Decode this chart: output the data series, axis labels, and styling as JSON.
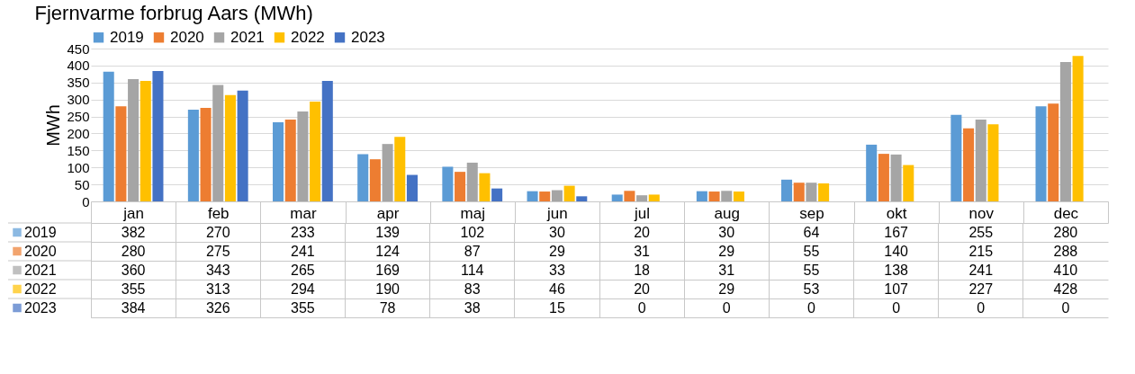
{
  "chart_data": {
    "type": "bar",
    "title": "Fjernvarme forbrug Aars (MWh)",
    "ylabel": "MWh",
    "categories": [
      "jan",
      "feb",
      "mar",
      "apr",
      "maj",
      "jun",
      "jul",
      "aug",
      "sep",
      "okt",
      "nov",
      "dec"
    ],
    "series": [
      {
        "name": "2019",
        "color": "#5b9bd5",
        "values": [
          382,
          270,
          233,
          139,
          102,
          30,
          20,
          30,
          64,
          167,
          255,
          280
        ]
      },
      {
        "name": "2020",
        "color": "#ed7d31",
        "values": [
          280,
          275,
          241,
          124,
          87,
          29,
          31,
          29,
          55,
          140,
          215,
          288
        ]
      },
      {
        "name": "2021",
        "color": "#a5a5a5",
        "values": [
          360,
          343,
          265,
          169,
          114,
          33,
          18,
          31,
          55,
          138,
          241,
          410
        ]
      },
      {
        "name": "2022",
        "color": "#ffc000",
        "values": [
          355,
          313,
          294,
          190,
          83,
          46,
          20,
          29,
          53,
          107,
          227,
          428
        ]
      },
      {
        "name": "2023",
        "color": "#4472c4",
        "values": [
          384,
          326,
          355,
          78,
          38,
          15,
          0,
          0,
          0,
          0,
          0,
          0
        ]
      }
    ],
    "ylim": [
      0,
      450
    ],
    "yticks": [
      0,
      50,
      100,
      150,
      200,
      250,
      300,
      350,
      400,
      450
    ],
    "grid": "y",
    "legend": "top",
    "data_labels": true
  }
}
